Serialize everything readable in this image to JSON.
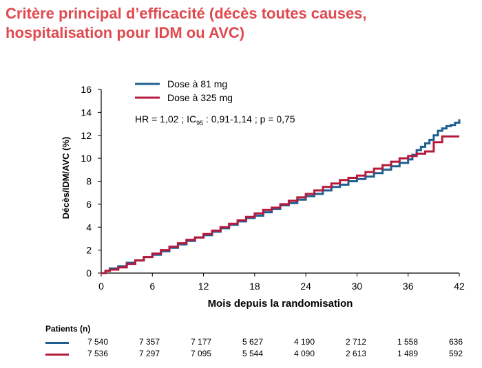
{
  "title": {
    "line1": "Critère principal d’efficacité (décès toutes causes,",
    "line2": "hospitalisation pour IDM ou AVC)"
  },
  "colors": {
    "title": "#e0494f",
    "series_81": "#1f5f8f",
    "series_325": "#b51a3d",
    "axis": "#000000"
  },
  "annotation": {
    "prefix": "HR = 1,02 ; IC",
    "sub": "95",
    "suffix": " : 0,91-1,14 ; p = 0,75"
  },
  "chart_data": {
    "type": "line",
    "step": true,
    "title": "Critère principal d’efficacité (décès toutes causes, hospitalisation pour IDM ou AVC)",
    "xlabel": "Mois depuis la randomisation",
    "ylabel": "Décès/IDM/AVC (%)",
    "xlim": [
      0,
      42
    ],
    "ylim": [
      0,
      16
    ],
    "xticks": [
      0,
      6,
      12,
      18,
      24,
      30,
      36,
      42
    ],
    "yticks": [
      0,
      2,
      4,
      6,
      8,
      10,
      12,
      14,
      16
    ],
    "legend_position": "top",
    "series": [
      {
        "name": "Dose à 81 mg",
        "color": "#1f5f8f",
        "x": [
          0,
          0.5,
          1,
          2,
          3,
          4,
          5,
          6,
          7,
          8,
          9,
          10,
          11,
          12,
          13,
          14,
          15,
          16,
          17,
          18,
          19,
          20,
          21,
          22,
          23,
          24,
          25,
          26,
          27,
          28,
          29,
          30,
          31,
          32,
          33,
          34,
          35,
          36,
          36.5,
          37,
          37.5,
          38,
          38.5,
          39,
          39.5,
          40,
          40.5,
          41,
          41.5,
          42
        ],
        "y": [
          0,
          0.2,
          0.4,
          0.6,
          0.9,
          1.1,
          1.4,
          1.6,
          1.9,
          2.2,
          2.5,
          2.8,
          3.1,
          3.3,
          3.6,
          3.9,
          4.2,
          4.5,
          4.8,
          5.0,
          5.3,
          5.6,
          5.9,
          6.1,
          6.4,
          6.7,
          6.9,
          7.2,
          7.5,
          7.7,
          8.0,
          8.2,
          8.4,
          8.7,
          9.0,
          9.3,
          9.6,
          9.9,
          10.3,
          10.7,
          11.0,
          11.3,
          11.6,
          12.0,
          12.4,
          12.6,
          12.8,
          12.9,
          13.1,
          13.4
        ]
      },
      {
        "name": "Dose à 325 mg",
        "color": "#b51a3d",
        "x": [
          0,
          0.5,
          1,
          2,
          3,
          4,
          5,
          6,
          7,
          8,
          9,
          10,
          11,
          12,
          13,
          14,
          15,
          16,
          17,
          18,
          19,
          20,
          21,
          22,
          23,
          24,
          25,
          26,
          27,
          28,
          29,
          30,
          31,
          32,
          33,
          34,
          35,
          36,
          37,
          38,
          39,
          40,
          41,
          42
        ],
        "y": [
          0,
          0.2,
          0.3,
          0.5,
          0.8,
          1.1,
          1.4,
          1.7,
          2.0,
          2.3,
          2.6,
          2.9,
          3.1,
          3.4,
          3.7,
          4.0,
          4.3,
          4.6,
          4.9,
          5.2,
          5.5,
          5.7,
          6.0,
          6.3,
          6.6,
          6.9,
          7.2,
          7.5,
          7.8,
          8.1,
          8.3,
          8.5,
          8.8,
          9.1,
          9.4,
          9.7,
          10.0,
          10.2,
          10.4,
          10.6,
          11.4,
          11.9,
          11.9,
          11.9
        ]
      }
    ]
  },
  "patients": {
    "title": "Patients (n)",
    "rows": [
      {
        "name": "Dose à 81 mg",
        "color": "#1f5f8f",
        "values": [
          "7 540",
          "7 357",
          "7 177",
          "5 627",
          "4 190",
          "2 712",
          "1 558",
          "636"
        ]
      },
      {
        "name": "Dose à 325 mg",
        "color": "#b51a3d",
        "values": [
          "7 536",
          "7 297",
          "7 095",
          "5 544",
          "4 090",
          "2 613",
          "1 489",
          "592"
        ]
      }
    ]
  }
}
